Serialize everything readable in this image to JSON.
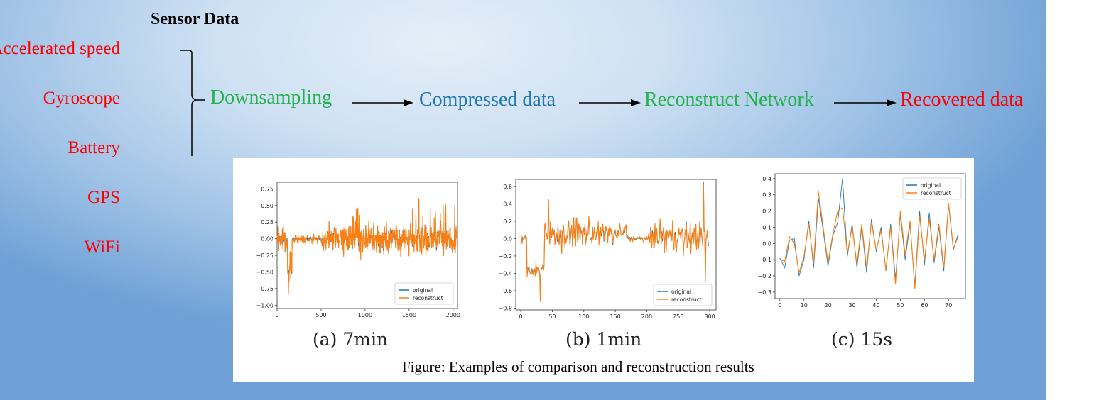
{
  "title": "Sensor Data",
  "sensors": [
    "Accelerated speed",
    "Gyroscope",
    "Battery",
    "GPS",
    "WiFi"
  ],
  "flow": {
    "downsampling": "Downsampling",
    "compressed": "Compressed data",
    "network": "Reconstruct Network",
    "recovered": "Recovered data"
  },
  "colors": {
    "red": "#ff0000",
    "green": "#22b14c",
    "blue": "#1f77b4",
    "orange": "#ff7f0e"
  },
  "caption": "Figure: Examples of comparison and reconstruction results",
  "chart_data": [
    {
      "type": "line",
      "sublabel": "(a)  7min",
      "xlim": [
        0,
        2050
      ],
      "ylim": [
        -1.05,
        0.85
      ],
      "xticks": [
        0,
        500,
        1000,
        1500,
        2000
      ],
      "yticks": [
        0.75,
        0.5,
        0.25,
        0.0,
        -0.25,
        -0.5,
        -0.75,
        -1.0
      ],
      "ytick_labels": [
        "0.75",
        "0.50",
        "0.25",
        "0.00",
        "−0.25",
        "−0.50",
        "−0.75",
        "−1.00"
      ],
      "legend": "bottom-right",
      "series": [
        {
          "name": "original",
          "color": "#1f77b4"
        },
        {
          "name": "reconstruct",
          "color": "#ff7f0e"
        }
      ]
    },
    {
      "type": "line",
      "sublabel": "(b)  1min",
      "xlim": [
        -8,
        310
      ],
      "ylim": [
        -0.82,
        0.68
      ],
      "xticks": [
        0,
        50,
        100,
        150,
        200,
        250,
        300
      ],
      "yticks": [
        0.6,
        0.4,
        0.2,
        0.0,
        -0.2,
        -0.4,
        -0.6,
        -0.8
      ],
      "ytick_labels": [
        "0.6",
        "0.4",
        "0.2",
        "0.0",
        "−0.2",
        "−0.4",
        "−0.6",
        "−0.8"
      ],
      "legend": "bottom-right",
      "series": [
        {
          "name": "original",
          "color": "#1f77b4"
        },
        {
          "name": "reconstruct",
          "color": "#ff7f0e"
        }
      ]
    },
    {
      "type": "line",
      "sublabel": "(c)  15s",
      "xlim": [
        -2,
        77
      ],
      "ylim": [
        -0.34,
        0.43
      ],
      "xticks": [
        0,
        10,
        20,
        30,
        40,
        50,
        60,
        70
      ],
      "yticks": [
        0.4,
        0.3,
        0.2,
        0.1,
        0.0,
        -0.1,
        -0.2,
        -0.3
      ],
      "ytick_labels": [
        "0.4",
        "0.3",
        "0.2",
        "0.1",
        "0.0",
        "−0.1",
        "−0.2",
        "−0.3"
      ],
      "legend": "top-right",
      "x": [
        0,
        2,
        4,
        6,
        8,
        10,
        12,
        14,
        16,
        18,
        20,
        22,
        24,
        26,
        28,
        30,
        32,
        34,
        36,
        38,
        40,
        42,
        44,
        46,
        48,
        50,
        52,
        54,
        56,
        58,
        60,
        62,
        64,
        66,
        68,
        70,
        72,
        74
      ],
      "series": [
        {
          "name": "original",
          "color": "#1f77b4",
          "values": [
            -0.09,
            -0.15,
            0.02,
            0.03,
            -0.2,
            -0.1,
            0.14,
            -0.15,
            0.28,
            0.08,
            -0.14,
            0.05,
            0.13,
            0.4,
            -0.08,
            0.12,
            -0.15,
            0.1,
            -0.18,
            0.15,
            -0.05,
            0.1,
            -0.17,
            0.12,
            -0.22,
            0.18,
            -0.1,
            0.12,
            -0.26,
            0.2,
            -0.13,
            0.19,
            -0.12,
            0.1,
            -0.17,
            0.24,
            -0.04,
            0.06
          ]
        },
        {
          "name": "reconstruct",
          "color": "#ff7f0e",
          "values": [
            -0.1,
            -0.11,
            0.04,
            0.0,
            -0.18,
            -0.08,
            0.12,
            -0.12,
            0.32,
            0.1,
            -0.12,
            0.06,
            0.2,
            0.22,
            -0.06,
            0.1,
            -0.13,
            0.12,
            -0.15,
            0.13,
            -0.04,
            0.08,
            -0.16,
            0.1,
            -0.25,
            0.2,
            -0.07,
            0.14,
            -0.28,
            0.17,
            -0.1,
            0.15,
            -0.1,
            0.12,
            -0.15,
            0.25,
            -0.03,
            0.04
          ]
        }
      ]
    }
  ]
}
